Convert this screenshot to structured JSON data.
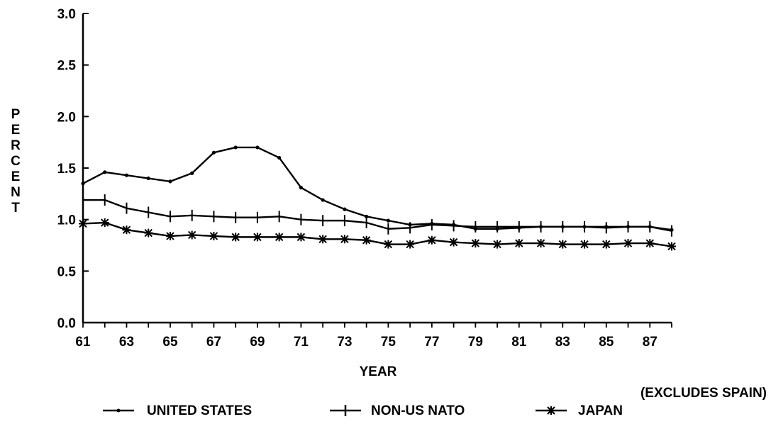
{
  "chart_data": {
    "type": "line",
    "title": "",
    "xlabel": "YEAR",
    "ylabel": "PERCENT",
    "note": "(EXCLUDES SPAIN)",
    "xlim": [
      61,
      88
    ],
    "ylim": [
      0,
      3.0
    ],
    "x_ticks": [
      "61",
      "63",
      "65",
      "67",
      "69",
      "71",
      "73",
      "75",
      "77",
      "79",
      "81",
      "83",
      "85",
      "87"
    ],
    "y_ticks": [
      "0.0",
      "0.5",
      "1.0",
      "1.5",
      "2.0",
      "2.5",
      "3.0"
    ],
    "grid": false,
    "legend_position": "bottom",
    "x": [
      61,
      62,
      63,
      64,
      65,
      66,
      67,
      68,
      69,
      70,
      71,
      72,
      73,
      74,
      75,
      76,
      77,
      78,
      79,
      80,
      81,
      82,
      83,
      84,
      85,
      86,
      87,
      88
    ],
    "series": [
      {
        "name": "UNITED STATES",
        "marker": "dot",
        "values": [
          1.35,
          1.46,
          1.43,
          1.4,
          1.37,
          1.45,
          1.65,
          1.7,
          1.7,
          1.6,
          1.31,
          1.19,
          1.1,
          1.03,
          0.99,
          0.95,
          0.96,
          0.95,
          0.91,
          0.91,
          0.92,
          0.93,
          0.93,
          0.93,
          0.93,
          0.93,
          0.93,
          0.9
        ]
      },
      {
        "name": "NON-US NATO",
        "marker": "plus",
        "values": [
          1.19,
          1.19,
          1.11,
          1.07,
          1.03,
          1.04,
          1.03,
          1.02,
          1.02,
          1.03,
          1.0,
          0.99,
          0.99,
          0.97,
          0.91,
          0.92,
          0.95,
          0.94,
          0.93,
          0.93,
          0.93,
          0.93,
          0.93,
          0.93,
          0.92,
          0.93,
          0.93,
          0.89
        ]
      },
      {
        "name": "JAPAN",
        "marker": "star",
        "values": [
          0.96,
          0.97,
          0.9,
          0.87,
          0.84,
          0.85,
          0.84,
          0.83,
          0.83,
          0.83,
          0.83,
          0.81,
          0.81,
          0.8,
          0.76,
          0.76,
          0.8,
          0.78,
          0.77,
          0.76,
          0.77,
          0.77,
          0.76,
          0.76,
          0.76,
          0.77,
          0.77,
          0.74
        ]
      }
    ]
  }
}
